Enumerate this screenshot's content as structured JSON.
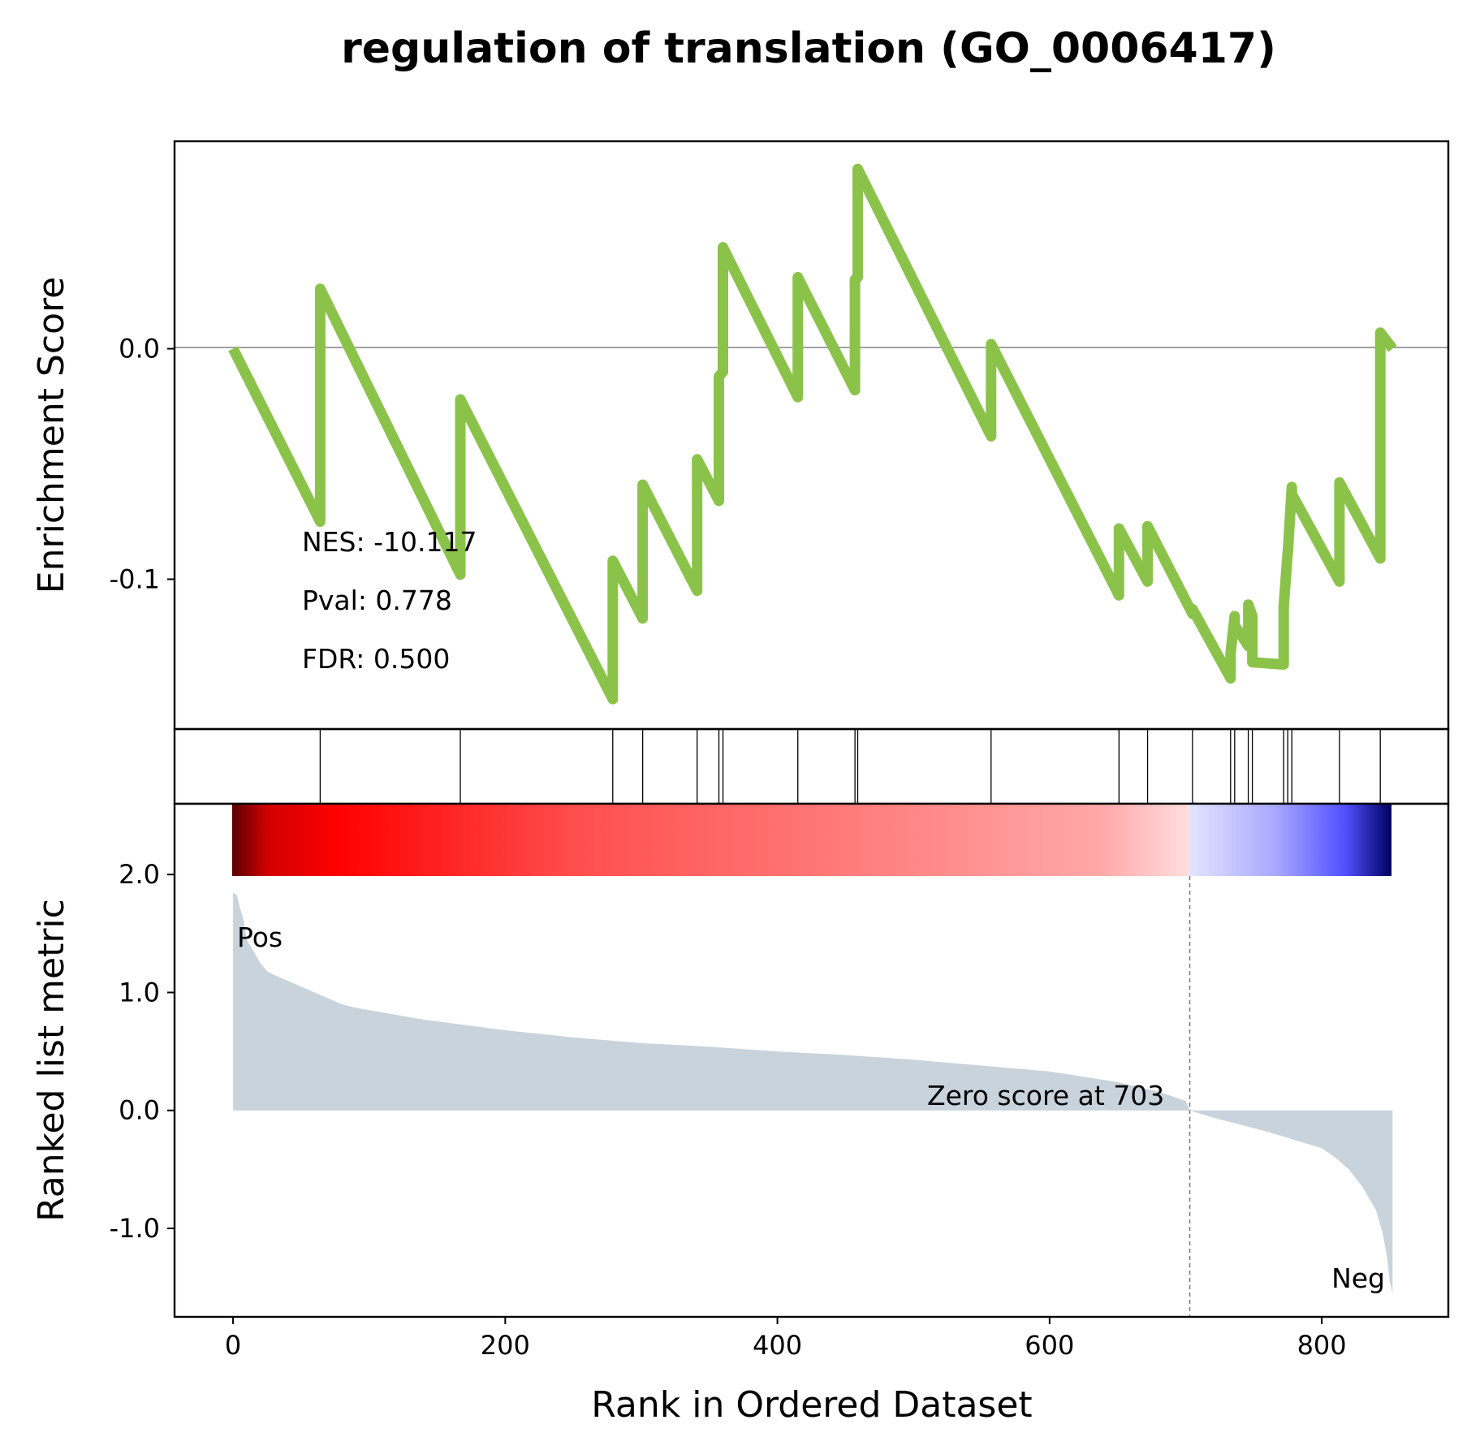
{
  "chart_data": {
    "type": "line",
    "title": "regulation of translation (GO_0006417)",
    "xlabel": "Rank in Ordered Dataset",
    "xlim": [
      -43,
      893
    ],
    "x_ticks": [
      "0",
      "200",
      "400",
      "600",
      "800"
    ],
    "x_tick_values": [
      0,
      200,
      400,
      600,
      800
    ],
    "enrichment": {
      "ylabel": "Enrichment Score",
      "ylim": [
        -0.165,
        0.09
      ],
      "y_ticks": [
        "0.0",
        "-0.1"
      ],
      "y_tick_values": [
        0.0,
        -0.1
      ],
      "line_color": "#8bc34a",
      "series": {
        "name": "",
        "x": [
          0,
          64,
          64,
          167,
          167,
          279,
          279,
          301,
          301,
          341,
          341,
          357,
          357,
          360,
          360,
          415,
          415,
          457,
          457,
          459,
          459,
          557,
          557,
          651,
          651,
          672,
          672,
          705,
          705,
          733,
          733,
          736,
          736,
          746,
          746,
          749,
          749,
          772,
          772,
          775,
          775,
          778,
          778,
          813,
          813,
          843,
          843,
          852
        ],
        "y": [
          0.0,
          -0.075,
          0.026,
          -0.098,
          -0.022,
          -0.152,
          -0.092,
          -0.117,
          -0.059,
          -0.105,
          -0.048,
          -0.066,
          -0.012,
          -0.01,
          0.044,
          -0.021,
          0.031,
          -0.018,
          0.03,
          0.031,
          0.078,
          -0.038,
          0.002,
          -0.107,
          -0.078,
          -0.101,
          -0.077,
          -0.115,
          -0.113,
          -0.143,
          -0.132,
          -0.116,
          -0.12,
          -0.129,
          -0.111,
          -0.116,
          -0.136,
          -0.137,
          -0.112,
          -0.088,
          -0.089,
          -0.06,
          -0.063,
          -0.101,
          -0.058,
          -0.091,
          0.007,
          0.0
        ]
      },
      "stats": {
        "nes": "NES: -10.117",
        "pval": "Pval: 0.778",
        "fdr": "FDR: 0.500"
      }
    },
    "hits": [
      64,
      167,
      279,
      301,
      341,
      357,
      360,
      415,
      457,
      459,
      557,
      651,
      672,
      705,
      733,
      736,
      746,
      749,
      772,
      775,
      778,
      813,
      843
    ],
    "ranked_metric": {
      "ylabel": "Ranked list metric",
      "ylim": [
        -1.75,
        2.6
      ],
      "y_ticks": [
        "2.0",
        "1.0",
        "0.0",
        "-1.0"
      ],
      "y_tick_values": [
        2.0,
        1.0,
        0.0,
        -1.0
      ],
      "fill_color": "#c8d3dc",
      "profile_x": [
        0,
        3,
        5,
        8,
        10,
        15,
        20,
        25,
        30,
        40,
        50,
        60,
        70,
        80,
        90,
        100,
        120,
        140,
        160,
        180,
        200,
        250,
        300,
        350,
        400,
        450,
        500,
        550,
        600,
        650,
        680,
        700,
        703,
        720,
        740,
        760,
        780,
        800,
        810,
        820,
        830,
        840,
        845,
        848,
        850,
        852
      ],
      "profile_y": [
        1.85,
        1.82,
        1.72,
        1.6,
        1.45,
        1.35,
        1.25,
        1.18,
        1.15,
        1.1,
        1.05,
        1.0,
        0.95,
        0.9,
        0.87,
        0.85,
        0.81,
        0.77,
        0.74,
        0.71,
        0.68,
        0.62,
        0.57,
        0.54,
        0.5,
        0.47,
        0.43,
        0.38,
        0.33,
        0.24,
        0.16,
        0.08,
        0.0,
        -0.06,
        -0.12,
        -0.18,
        -0.25,
        -0.32,
        -0.4,
        -0.5,
        -0.65,
        -0.85,
        -1.05,
        -1.25,
        -1.45,
        -1.55
      ],
      "zero_rank": 703,
      "zero_note": "Zero score at 703",
      "pos_label": "Pos",
      "neg_label": "Neg",
      "pos_color": "#ff0000",
      "neg_color": "#0000ff"
    }
  }
}
